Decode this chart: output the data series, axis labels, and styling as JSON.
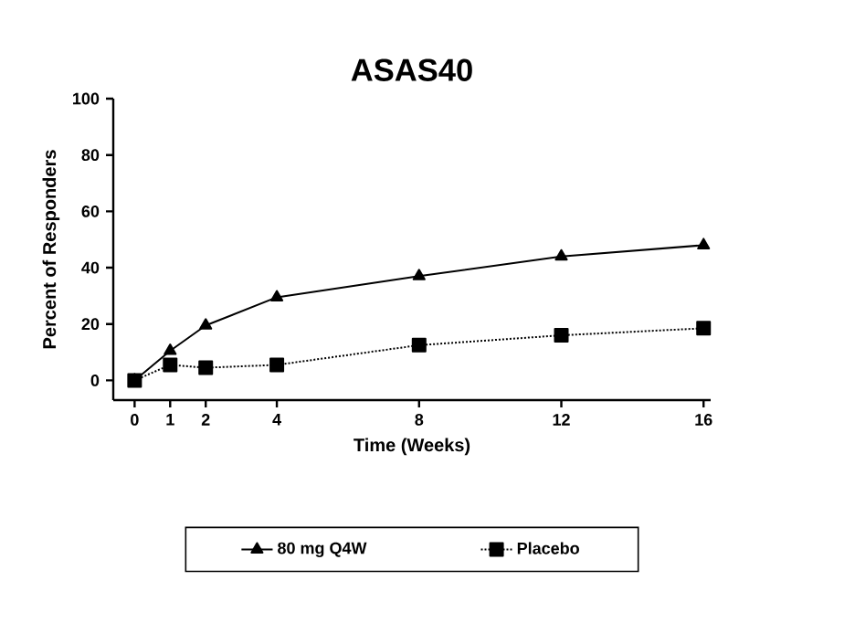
{
  "chart_data": {
    "type": "line",
    "title": "ASAS40",
    "xlabel": "Time (Weeks)",
    "ylabel": "Percent of Responders",
    "x": [
      0,
      1,
      2,
      4,
      8,
      12,
      16
    ],
    "series": [
      {
        "name": "80 mg Q4W",
        "color": "#000000",
        "marker": "triangle",
        "line_style": "solid",
        "values": [
          0,
          10.5,
          19.5,
          29.5,
          37,
          44,
          48
        ]
      },
      {
        "name": "Placebo",
        "color": "#000000",
        "marker": "square",
        "line_style": "dotted",
        "values": [
          0,
          5.5,
          4.5,
          5.5,
          12.5,
          16,
          18.5
        ]
      }
    ],
    "xlim": [
      -0.6,
      16.2
    ],
    "ylim": [
      -7,
      100
    ],
    "xticks": [
      0,
      1,
      2,
      4,
      8,
      12,
      16
    ],
    "yticks": [
      0,
      20,
      40,
      60,
      80,
      100
    ],
    "grid": false,
    "legend": "bottom"
  }
}
